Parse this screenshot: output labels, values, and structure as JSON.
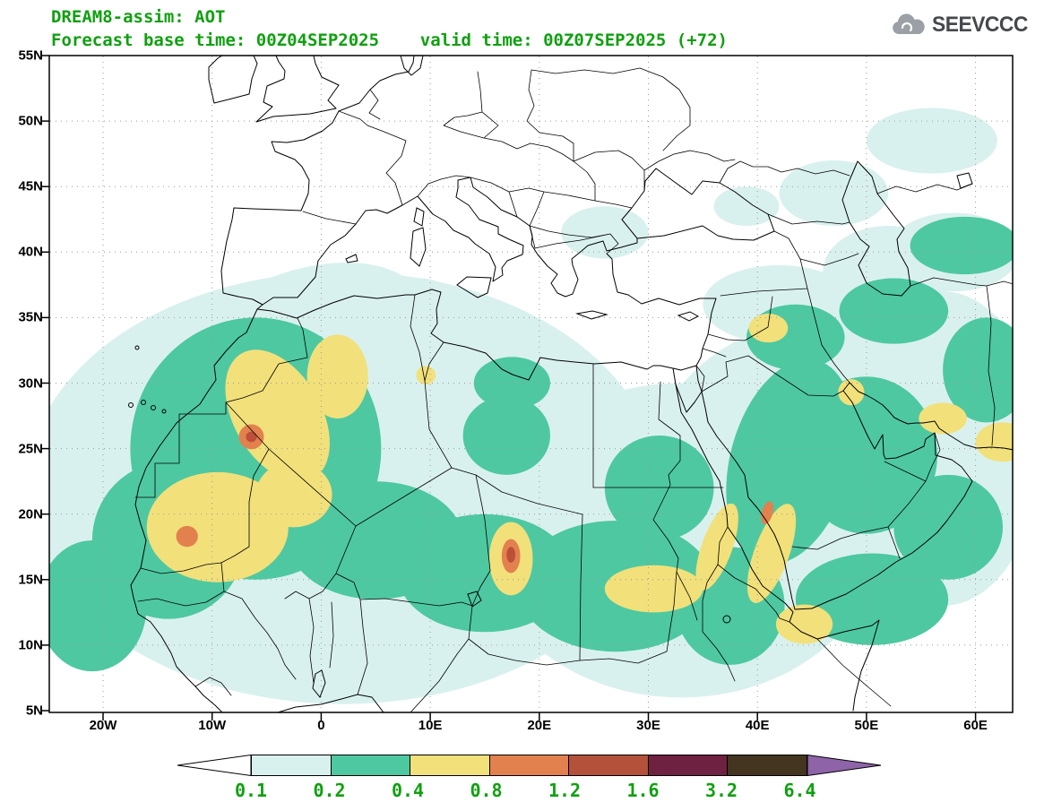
{
  "header": {
    "title_line1": "DREAM8-assim: AOT",
    "title_line2": "Forecast base time: 00Z04SEP2025    valid time: 00Z07SEP2025 (+72)",
    "logo_text": "SEEVCCC"
  },
  "colors": {
    "title_green": "#10a010",
    "axis_label_black": "#000000",
    "logo_cloud_gray": "#9aa0a5",
    "logo_text_dark": "#45484c"
  },
  "map": {
    "lat_ticks": [
      "55N",
      "50N",
      "45N",
      "40N",
      "35N",
      "30N",
      "25N",
      "20N",
      "15N",
      "10N",
      "5N"
    ],
    "lon_ticks": [
      "20W",
      "10W",
      "0",
      "10E",
      "20E",
      "30E",
      "40E",
      "50E",
      "60E"
    ]
  },
  "colorbar": {
    "labels": [
      "0.1",
      "0.2",
      "0.4",
      "0.8",
      "1.2",
      "1.6",
      "3.2",
      "6.4"
    ],
    "segments": [
      {
        "name": "below-0.1",
        "color": "#ffffff",
        "shape": "arrow-left"
      },
      {
        "name": "0.1-0.2",
        "color": "#d9f1ee"
      },
      {
        "name": "0.2-0.4",
        "color": "#4ec8a1"
      },
      {
        "name": "0.4-0.8",
        "color": "#f2e07b"
      },
      {
        "name": "0.8-1.2",
        "color": "#e2814e"
      },
      {
        "name": "1.2-1.6",
        "color": "#b4513a"
      },
      {
        "name": "1.6-3.2",
        "color": "#6e2140"
      },
      {
        "name": "3.2-6.4",
        "color": "#443520"
      },
      {
        "name": "above-6.4",
        "color": "#8f63a8",
        "shape": "arrow-right"
      }
    ]
  },
  "chart_data": {
    "type": "heatmap",
    "title": "DREAM8-assim: AOT",
    "variable": "AOT (aerosol optical thickness)",
    "forecast_base_time": "00Z04SEP2025",
    "valid_time": "00Z07SEP2025",
    "forecast_hour": "+72",
    "extent": {
      "lon_min": -24.93,
      "lon_max": 63.4,
      "lat_min": 5,
      "lat_max": 55
    },
    "contour_levels": [
      0.1,
      0.2,
      0.4,
      0.8,
      1.2,
      1.6,
      3.2,
      6.4
    ],
    "level_colors": {
      "0.1": "#d9f1ee",
      "0.2": "#4ec8a1",
      "0.4": "#f2e07b",
      "0.8": "#e2814e",
      "1.2": "#bb4f38",
      "1.6": "#6e2140",
      "3.2": "#443520",
      "6.4+": "#8f63a8"
    },
    "features": [
      {
        "level": 0.1,
        "lon": 2,
        "lat": 22,
        "rx": 29,
        "ry": 16.5,
        "rot": 0
      },
      {
        "level": 0.1,
        "lon": 33,
        "lat": 18,
        "rx": 18,
        "ry": 12,
        "rot": 0
      },
      {
        "level": 0.1,
        "lon": 47,
        "lat": 23,
        "rx": 17,
        "ry": 12,
        "rot": 0
      },
      {
        "level": 0.1,
        "lon": 57,
        "lat": 25,
        "rx": 9,
        "ry": 12,
        "rot": 0
      },
      {
        "level": 0.1,
        "lon": -2,
        "lat": 33,
        "rx": 12,
        "ry": 5.5,
        "rot": -20
      },
      {
        "level": 0.1,
        "lon": 9,
        "lat": 34.5,
        "rx": 4.5,
        "ry": 3.5,
        "rot": 0
      },
      {
        "level": 0.1,
        "lon": 42,
        "lat": 36,
        "rx": 7,
        "ry": 3,
        "rot": 0
      },
      {
        "level": 0.1,
        "lon": 52,
        "lat": 38.5,
        "rx": 6,
        "ry": 3.5,
        "rot": 0
      },
      {
        "level": 0.1,
        "lon": 58,
        "lat": 40,
        "rx": 6,
        "ry": 3,
        "rot": 0
      },
      {
        "level": 0.1,
        "lon": 26,
        "lat": 41.5,
        "rx": 4,
        "ry": 2,
        "rot": 0
      },
      {
        "level": 0.1,
        "lon": 47,
        "lat": 44.5,
        "rx": 5,
        "ry": 2.5,
        "rot": 0
      },
      {
        "level": 0.1,
        "lon": 56,
        "lat": 48.5,
        "rx": 6,
        "ry": 2.5,
        "rot": 0
      },
      {
        "level": 0.1,
        "lon": 39,
        "lat": 43.5,
        "rx": 3,
        "ry": 1.5,
        "rot": 0
      },
      {
        "level": 0.2,
        "lon": -6,
        "lat": 25,
        "rx": 11.5,
        "ry": 10,
        "rot": 0
      },
      {
        "level": 0.2,
        "lon": -14,
        "lat": 18,
        "rx": 7,
        "ry": 6,
        "rot": 0
      },
      {
        "level": 0.2,
        "lon": -21,
        "lat": 13,
        "rx": 5,
        "ry": 5,
        "rot": 0
      },
      {
        "level": 0.2,
        "lon": 5,
        "lat": 18,
        "rx": 8,
        "ry": 4.5,
        "rot": 0
      },
      {
        "level": 0.2,
        "lon": 15,
        "lat": 15.5,
        "rx": 8,
        "ry": 4.5,
        "rot": 0
      },
      {
        "level": 0.2,
        "lon": 27,
        "lat": 14.5,
        "rx": 9,
        "ry": 5,
        "rot": 0
      },
      {
        "level": 0.2,
        "lon": 31,
        "lat": 22,
        "rx": 5,
        "ry": 4,
        "rot": 0
      },
      {
        "level": 0.2,
        "lon": 17,
        "lat": 26,
        "rx": 4,
        "ry": 3,
        "rot": 0
      },
      {
        "level": 0.2,
        "lon": 17.5,
        "lat": 30,
        "rx": 3.5,
        "ry": 2,
        "rot": 0
      },
      {
        "level": 0.2,
        "lon": 37.5,
        "lat": 13,
        "rx": 5,
        "ry": 4.5,
        "rot": 0
      },
      {
        "level": 0.2,
        "lon": 43,
        "lat": 24,
        "rx": 5.5,
        "ry": 8,
        "rot": 15
      },
      {
        "level": 0.2,
        "lon": 50,
        "lat": 24.5,
        "rx": 6.5,
        "ry": 6,
        "rot": 0
      },
      {
        "level": 0.2,
        "lon": 50.5,
        "lat": 13.5,
        "rx": 7,
        "ry": 3.5,
        "rot": 0
      },
      {
        "level": 0.2,
        "lon": 57.5,
        "lat": 19,
        "rx": 5,
        "ry": 4,
        "rot": 0
      },
      {
        "level": 0.2,
        "lon": 43.5,
        "lat": 33.5,
        "rx": 4.5,
        "ry": 2.5,
        "rot": 0
      },
      {
        "level": 0.2,
        "lon": 52.5,
        "lat": 35.5,
        "rx": 5,
        "ry": 2.5,
        "rot": 0
      },
      {
        "level": 0.2,
        "lon": 59,
        "lat": 40.5,
        "rx": 5,
        "ry": 2.2,
        "rot": 0
      },
      {
        "level": 0.2,
        "lon": 61,
        "lat": 31,
        "rx": 4,
        "ry": 4,
        "rot": 0
      },
      {
        "level": 0.4,
        "lon": -9.5,
        "lat": 19,
        "rx": 6.5,
        "ry": 4.2,
        "rot": 0
      },
      {
        "level": 0.4,
        "lon": -4,
        "lat": 27.5,
        "rx": 4,
        "ry": 5.5,
        "rot": -30
      },
      {
        "level": 0.4,
        "lon": -2.5,
        "lat": 21.5,
        "rx": 3.5,
        "ry": 2.5,
        "rot": 0
      },
      {
        "level": 0.4,
        "lon": 1.5,
        "lat": 30.5,
        "rx": 2.8,
        "ry": 3.2,
        "rot": 0
      },
      {
        "level": 0.4,
        "lon": 17.4,
        "lat": 16.6,
        "rx": 2.0,
        "ry": 2.8,
        "rot": 0
      },
      {
        "level": 0.4,
        "lon": 30.5,
        "lat": 14.3,
        "rx": 4.5,
        "ry": 1.8,
        "rot": 0
      },
      {
        "level": 0.4,
        "lon": 36.3,
        "lat": 17.5,
        "rx": 1.4,
        "ry": 3.5,
        "rot": 20
      },
      {
        "level": 0.4,
        "lon": 41.3,
        "lat": 17,
        "rx": 1.6,
        "ry": 4,
        "rot": 20
      },
      {
        "level": 0.4,
        "lon": 41,
        "lat": 34.2,
        "rx": 1.8,
        "ry": 1.1,
        "rot": 0
      },
      {
        "level": 0.4,
        "lon": 48.6,
        "lat": 29.3,
        "rx": 1.2,
        "ry": 1.0,
        "rot": 0
      },
      {
        "level": 0.4,
        "lon": 57,
        "lat": 27.3,
        "rx": 2.2,
        "ry": 1.2,
        "rot": 0
      },
      {
        "level": 0.4,
        "lon": 44.3,
        "lat": 11.6,
        "rx": 2.6,
        "ry": 1.5,
        "rot": 0
      },
      {
        "level": 0.4,
        "lon": 62.5,
        "lat": 25.5,
        "rx": 2.5,
        "ry": 1.5,
        "rot": 0
      },
      {
        "level": 0.4,
        "lon": 9.6,
        "lat": 30.6,
        "rx": 0.9,
        "ry": 0.7,
        "rot": 0
      },
      {
        "level": 0.8,
        "lon": -6.4,
        "lat": 25.9,
        "rx": 1.15,
        "ry": 0.95,
        "rot": 0
      },
      {
        "level": 0.8,
        "lon": -12.3,
        "lat": 18.3,
        "rx": 1.0,
        "ry": 0.8,
        "rot": 0
      },
      {
        "level": 0.8,
        "lon": 17.4,
        "lat": 16.8,
        "rx": 0.85,
        "ry": 1.3,
        "rot": 0
      },
      {
        "level": 0.8,
        "lon": 40.9,
        "lat": 20.1,
        "rx": 0.5,
        "ry": 0.9,
        "rot": 15
      },
      {
        "level": 1.2,
        "lon": -6.4,
        "lat": 25.9,
        "rx": 0.5,
        "ry": 0.4,
        "rot": 0
      },
      {
        "level": 1.2,
        "lon": 17.4,
        "lat": 16.9,
        "rx": 0.4,
        "ry": 0.6,
        "rot": 0
      }
    ]
  }
}
